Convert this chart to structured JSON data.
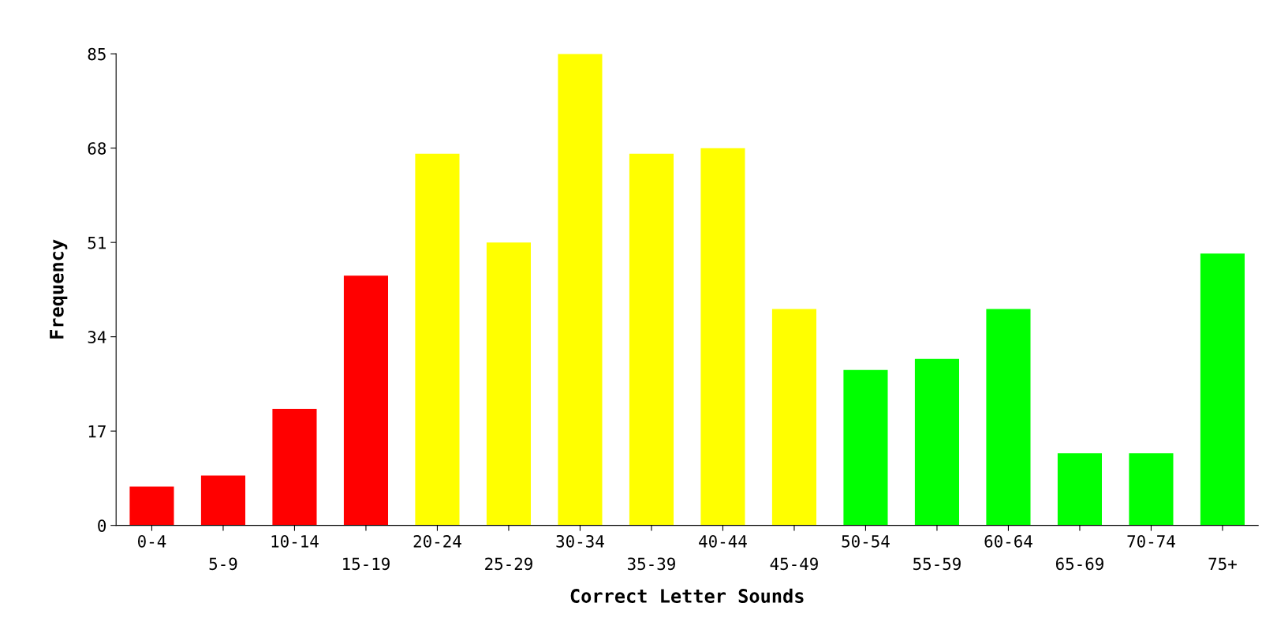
{
  "chart_data": {
    "type": "bar",
    "xlabel": "Correct Letter Sounds",
    "ylabel": "Frequency",
    "categories": [
      "0-4",
      "5-9",
      "10-14",
      "15-19",
      "20-24",
      "25-29",
      "30-34",
      "35-39",
      "40-44",
      "45-49",
      "50-54",
      "55-59",
      "60-64",
      "65-69",
      "70-74",
      "75+"
    ],
    "values": [
      7,
      9,
      21,
      45,
      67,
      51,
      85,
      67,
      68,
      39,
      28,
      30,
      39,
      13,
      13,
      49
    ],
    "colors": [
      "#ff0000",
      "#ff0000",
      "#ff0000",
      "#ff0000",
      "#ffff00",
      "#ffff00",
      "#ffff00",
      "#ffff00",
      "#ffff00",
      "#ffff00",
      "#00ff00",
      "#00ff00",
      "#00ff00",
      "#00ff00",
      "#00ff00",
      "#00ff00"
    ],
    "ylim": [
      0,
      85
    ],
    "yticks": [
      0,
      17,
      34,
      51,
      68,
      85
    ],
    "grid": false,
    "legend": false
  }
}
